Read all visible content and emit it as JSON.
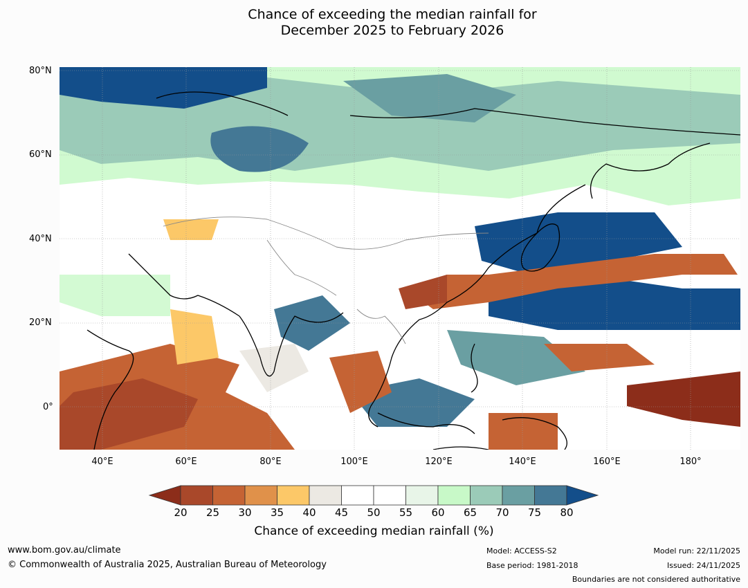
{
  "title": {
    "line1": "Chance of exceeding the median rainfall for",
    "line2": "December 2025 to February 2026"
  },
  "map": {
    "lat_ticks": [
      "80°N",
      "60°N",
      "40°N",
      "20°N",
      "0°"
    ],
    "lon_ticks": [
      "40°E",
      "60°E",
      "80°E",
      "100°E",
      "120°E",
      "140°E",
      "160°E",
      "180°"
    ],
    "lat_range": [
      -10,
      80
    ],
    "lon_range": [
      30,
      192
    ]
  },
  "colorbar": {
    "labels": [
      "20",
      "25",
      "30",
      "35",
      "40",
      "45",
      "50",
      "55",
      "60",
      "65",
      "70",
      "75",
      "80"
    ],
    "colors": {
      "below20": "#8c2d1a",
      "c20_25": "#a9482a",
      "c25_30": "#c56334",
      "c30_35": "#e0914a",
      "c35_40": "#fcc868",
      "c40_45": "#ece9e3",
      "c45_50": "#ffffff",
      "c50_55": "#ffffff",
      "c55_60": "#e8f5e8",
      "c60_65": "#c8f9c8",
      "c65_70": "#9bcbb8",
      "c70_75": "#6a9fa2",
      "c75_80": "#447895",
      "above80": "#134e8a"
    },
    "title": "Chance of exceeding median rainfall (%)"
  },
  "footer": {
    "url": "www.bom.gov.au/climate",
    "copyright": "© Commonwealth of Australia 2025, Australian Bureau of Meteorology",
    "model": "Model: ACCESS-S2",
    "base_period": "Base period: 1981-2018",
    "model_run": "Model run: 22/11/2025",
    "issued": "Issued: 24/11/2025",
    "disclaimer": "Boundaries are not considered authoritative"
  }
}
